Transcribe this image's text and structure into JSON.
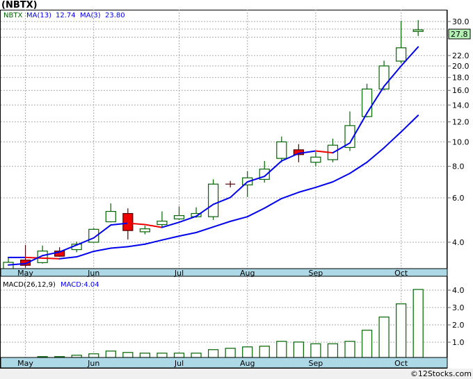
{
  "title": "(NBTX)",
  "footer": "©12Stocks.com",
  "colors": {
    "up": "#006400",
    "down": "#ee0000",
    "ma": "#0000ee",
    "band": "#add8e6",
    "badge": "#b4f0b4"
  },
  "legend": {
    "ticker": "NBTX",
    "ma_long_label": "MA(13)",
    "ma_long_value": "12.74",
    "ma_short_label": "MA(3)",
    "ma_short_value": "23.80"
  },
  "last_price": "27.8",
  "macd_legend": {
    "label": "MACD(26,12,9)",
    "value_label": "MACD:4.04"
  },
  "chart_data": [
    {
      "type": "candlestick",
      "title": "NBTX",
      "scale": "log",
      "ylim": [
        3.1,
        31.5
      ],
      "yticks": [
        "30.0",
        "22.0",
        "20.0",
        "18.0",
        "16.0",
        "14.0",
        "12.0",
        "10.0",
        "8.0",
        "6.0",
        "4.0"
      ],
      "ytick_values": [
        30,
        22,
        20,
        18,
        16,
        14,
        12,
        10,
        8,
        6,
        4
      ],
      "grid_values": [
        30,
        28,
        26,
        22,
        20,
        18,
        16,
        14,
        12,
        10,
        8,
        6,
        4
      ],
      "months": [
        {
          "label": "May",
          "index": 1
        },
        {
          "label": "Jun",
          "index": 5
        },
        {
          "label": "Jul",
          "index": 10
        },
        {
          "label": "Aug",
          "index": 14
        },
        {
          "label": "Sep",
          "index": 18
        },
        {
          "label": "Oct",
          "index": 23
        }
      ],
      "ohlc": [
        [
          3.14,
          3.5,
          3.12,
          3.33
        ],
        [
          3.4,
          3.9,
          3.17,
          3.24
        ],
        [
          3.32,
          3.88,
          3.29,
          3.69
        ],
        [
          3.69,
          3.82,
          3.5,
          3.52
        ],
        [
          3.74,
          4.02,
          3.65,
          3.93
        ],
        [
          4.0,
          4.55,
          3.98,
          4.5
        ],
        [
          4.82,
          5.7,
          4.8,
          5.3
        ],
        [
          5.2,
          5.45,
          4.1,
          4.45
        ],
        [
          4.4,
          4.65,
          4.3,
          4.52
        ],
        [
          4.7,
          5.3,
          4.6,
          4.85
        ],
        [
          4.95,
          5.55,
          4.9,
          5.1
        ],
        [
          5.05,
          5.5,
          5.0,
          5.2
        ],
        [
          5.05,
          7.1,
          4.9,
          6.8
        ],
        [
          6.8,
          7.0,
          6.6,
          6.8
        ],
        [
          6.75,
          7.65,
          6.05,
          7.2
        ],
        [
          7.1,
          8.4,
          6.9,
          7.8
        ],
        [
          8.6,
          10.5,
          8.3,
          10.0
        ],
        [
          9.3,
          9.8,
          8.3,
          8.9
        ],
        [
          8.3,
          9.1,
          8.0,
          8.7
        ],
        [
          8.5,
          10.3,
          8.3,
          9.7
        ],
        [
          9.5,
          13.2,
          9.2,
          11.6
        ],
        [
          12.6,
          17.0,
          12.5,
          16.2
        ],
        [
          16.2,
          21.0,
          16.0,
          20.0
        ],
        [
          20.9,
          30.2,
          20.5,
          23.6
        ],
        [
          27.4,
          30.4,
          26.3,
          27.8
        ]
      ],
      "ma_short": [
        3.25,
        3.29,
        3.54,
        3.66,
        3.9,
        4.16,
        4.68,
        4.76,
        4.7,
        4.58,
        4.8,
        5.07,
        5.65,
        6.02,
        6.94,
        7.3,
        8.4,
        9.0,
        9.2,
        9.05,
        9.9,
        13.0,
        16.6,
        20.0,
        23.8
      ],
      "ma_long": [
        3.48,
        3.48,
        3.46,
        3.44,
        3.5,
        3.68,
        3.79,
        3.84,
        3.93,
        4.08,
        4.23,
        4.37,
        4.6,
        4.84,
        5.05,
        5.46,
        5.96,
        6.31,
        6.6,
        6.94,
        7.5,
        8.3,
        9.47,
        10.95,
        12.74
      ]
    },
    {
      "type": "bar",
      "title": "MACD(26,12,9)",
      "ylim": [
        0,
        4.3
      ],
      "yticks": [
        "4.0",
        "3.0",
        "2.0",
        "1.0"
      ],
      "ytick_values": [
        4,
        3,
        2,
        1
      ],
      "values": [
        0.02,
        0.05,
        0.17,
        0.17,
        0.25,
        0.33,
        0.49,
        0.41,
        0.37,
        0.37,
        0.37,
        0.37,
        0.57,
        0.65,
        0.73,
        0.77,
        1.05,
        1.01,
        0.91,
        0.91,
        1.05,
        1.69,
        2.45,
        3.21,
        4.04
      ]
    }
  ]
}
